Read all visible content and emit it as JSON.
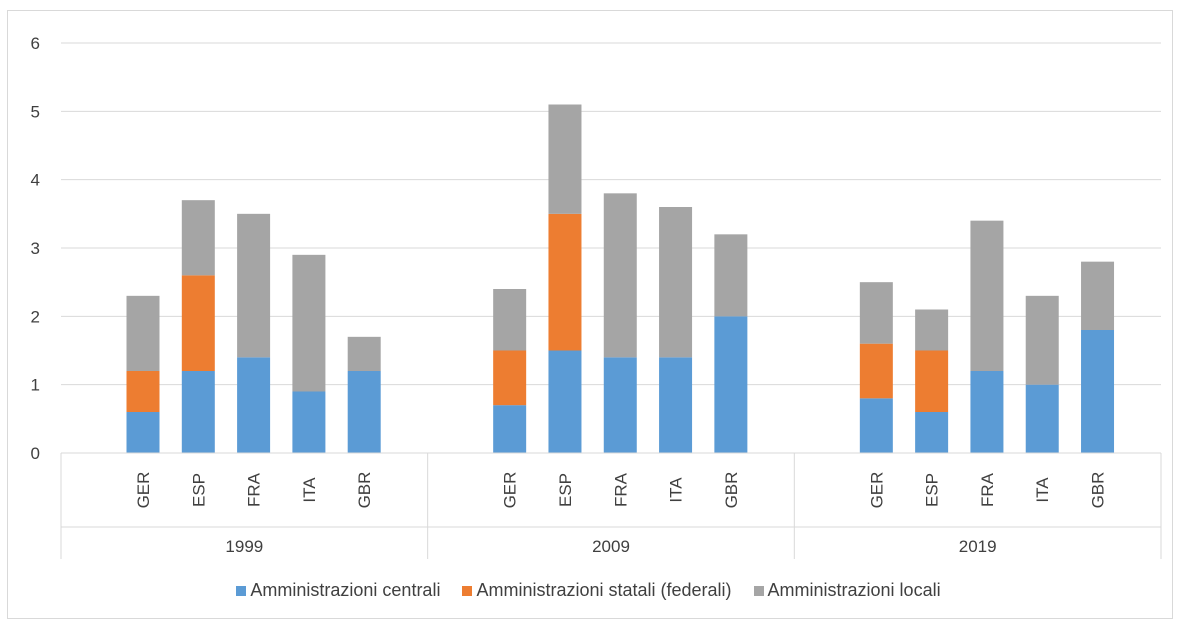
{
  "chart_data": {
    "type": "bar",
    "stacked": true,
    "groups": [
      "1999",
      "2009",
      "2019"
    ],
    "categories": [
      "GER",
      "ESP",
      "FRA",
      "ITA",
      "GBR"
    ],
    "ylim": [
      0,
      6
    ],
    "yticks": [
      "0",
      "1",
      "2",
      "3",
      "4",
      "5",
      "6"
    ],
    "grid": true,
    "legend_position": "bottom",
    "series": [
      {
        "name": "Amministrazioni centrali",
        "color": "#5b9bd5",
        "values": [
          [
            0.6,
            1.2,
            1.4,
            0.9,
            1.2
          ],
          [
            0.7,
            1.5,
            1.4,
            1.4,
            2.0
          ],
          [
            0.8,
            0.6,
            1.2,
            1.0,
            1.8
          ]
        ]
      },
      {
        "name": "Amministrazioni statali (federali)",
        "color": "#ed7d31",
        "values": [
          [
            0.6,
            1.4,
            0,
            0,
            0
          ],
          [
            0.8,
            2.0,
            0,
            0,
            0
          ],
          [
            0.8,
            0.9,
            0,
            0,
            0
          ]
        ]
      },
      {
        "name": "Amministrazioni locali",
        "color": "#a5a5a5",
        "values": [
          [
            1.1,
            1.1,
            2.1,
            2.0,
            0.5
          ],
          [
            0.9,
            1.6,
            2.4,
            2.2,
            1.2
          ],
          [
            0.9,
            0.6,
            2.2,
            1.3,
            1.0
          ]
        ]
      }
    ]
  }
}
